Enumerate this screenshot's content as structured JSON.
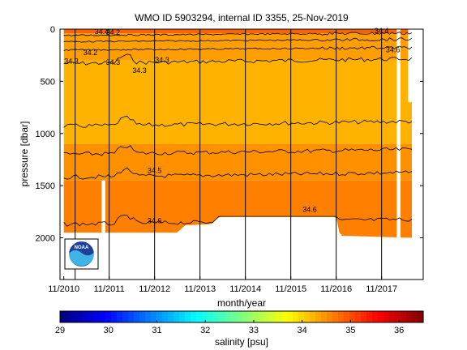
{
  "chart_data": {
    "type": "heatmap",
    "title": "WMO ID 5903294, internal ID 3355, 25-Nov-2019",
    "xlabel": "month/year",
    "ylabel": "pressure [dbar]",
    "x_ticks": [
      "11/2010",
      "11/2011",
      "11/2012",
      "11/2013",
      "11/2014",
      "11/2015",
      "11/2016",
      "11/2017"
    ],
    "y_ticks": [
      0,
      500,
      1000,
      1500,
      2000
    ],
    "ylim": [
      2400,
      0
    ],
    "xlim": [
      "2010-10",
      "2018-10"
    ],
    "y_reversed": true,
    "profile_lines": [
      "2011-02",
      "2011-11",
      "2012-11",
      "2013-11",
      "2014-11",
      "2015-11",
      "2016-11",
      "2017-11"
    ],
    "colorbar": {
      "label": "salinity [psu]",
      "ticks": [
        29,
        30,
        31,
        32,
        33,
        34,
        35,
        36
      ],
      "range": [
        29,
        36.5
      ],
      "colormap": "jet"
    },
    "field": {
      "start": "2010-11",
      "end": "2018-07",
      "bottom_pressure": [
        {
          "date": "2010-11",
          "p": 1950
        },
        {
          "date": "2013-05",
          "p": 1950
        },
        {
          "date": "2013-07",
          "p": 1880
        },
        {
          "date": "2014-02",
          "p": 1870
        },
        {
          "date": "2014-04",
          "p": 1800
        },
        {
          "date": "2016-11",
          "p": 1800
        },
        {
          "date": "2016-12",
          "p": 1980
        },
        {
          "date": "2018-07",
          "p": 2000
        }
      ],
      "layers": [
        {
          "from": 0,
          "to": 40,
          "salinity": 34.85
        },
        {
          "from": 40,
          "to": 300,
          "salinity": 34.4
        },
        {
          "from": 300,
          "to": 1100,
          "salinity": 34.25
        },
        {
          "from": 1100,
          "to": 1450,
          "salinity": 34.5
        },
        {
          "from": 1450,
          "to": 2000,
          "salinity": 34.62
        }
      ]
    },
    "contours": [
      {
        "level": 34.3,
        "depth": 330
      },
      {
        "level": 34.4,
        "depth": 930
      },
      {
        "level": 34.5,
        "depth": 1200
      },
      {
        "level": 34.5,
        "depth": 1420
      },
      {
        "level": 34.6,
        "depth": 1870
      }
    ],
    "contour_labels": [
      "34.4",
      "34.3",
      "34.2",
      "34.3",
      "34.3",
      "34.5",
      "34.6",
      "34.6",
      "34.4",
      "34.2",
      "34.3",
      "34.6"
    ],
    "colors": {
      "high": "#ff8800",
      "mid": "#ffa500",
      "low": "#ffb000",
      "no_data": "#ffffff",
      "contour": "#000000"
    }
  },
  "logo": {
    "name": "NOAA",
    "icon": "noaa-logo-icon"
  }
}
